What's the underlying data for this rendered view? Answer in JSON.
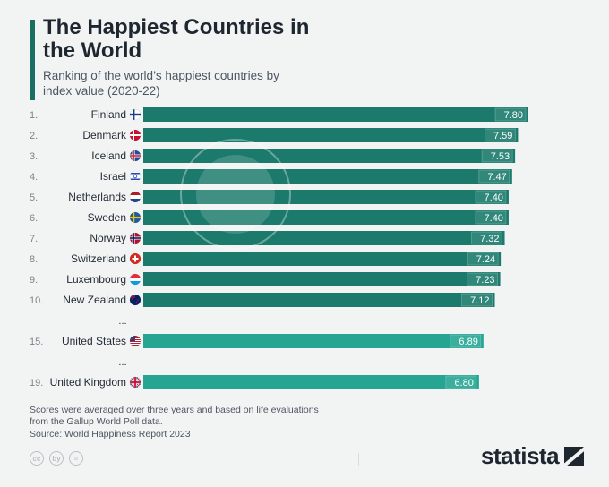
{
  "title": "The Happiest Countries in the World",
  "subtitle": "Ranking of the world’s happiest countries by index value (2020-22)",
  "footnote": "Scores were averaged over three years and based on life evaluations from the Gallup World Poll data.",
  "source": "Source: World Happiness Report 2023",
  "brand": "statista",
  "cc_icons": [
    "cc",
    "by",
    "="
  ],
  "colors": {
    "bar_top10": "#1b7a6c",
    "bar_other": "#25a592",
    "accent": "#1b6e62",
    "label_box": "#3a8f81"
  },
  "chart_data": {
    "type": "bar",
    "orientation": "horizontal",
    "title": "The Happiest Countries in the World",
    "xlabel": "",
    "ylabel": "",
    "xlim": [
      0,
      7.8
    ],
    "rows": [
      {
        "rank": "1.",
        "country": "Finland",
        "flag": "finland",
        "value": 7.8,
        "label": "7.80",
        "group": "top10"
      },
      {
        "rank": "2.",
        "country": "Denmark",
        "flag": "denmark",
        "value": 7.59,
        "label": "7.59",
        "group": "top10"
      },
      {
        "rank": "3.",
        "country": "Iceland",
        "flag": "iceland",
        "value": 7.53,
        "label": "7.53",
        "group": "top10"
      },
      {
        "rank": "4.",
        "country": "Israel",
        "flag": "israel",
        "value": 7.47,
        "label": "7.47",
        "group": "top10"
      },
      {
        "rank": "5.",
        "country": "Netherlands",
        "flag": "netherlands",
        "value": 7.4,
        "label": "7.40",
        "group": "top10"
      },
      {
        "rank": "6.",
        "country": "Sweden",
        "flag": "sweden",
        "value": 7.4,
        "label": "7.40",
        "group": "top10"
      },
      {
        "rank": "7.",
        "country": "Norway",
        "flag": "norway",
        "value": 7.32,
        "label": "7.32",
        "group": "top10"
      },
      {
        "rank": "8.",
        "country": "Switzerland",
        "flag": "switzerland",
        "value": 7.24,
        "label": "7.24",
        "group": "top10"
      },
      {
        "rank": "9.",
        "country": "Luxembourg",
        "flag": "luxembourg",
        "value": 7.23,
        "label": "7.23",
        "group": "top10"
      },
      {
        "rank": "10.",
        "country": "New Zealand",
        "flag": "new-zealand",
        "value": 7.12,
        "label": "7.12",
        "group": "top10"
      },
      {
        "gap": true,
        "label": "..."
      },
      {
        "rank": "15.",
        "country": "United States",
        "flag": "usa",
        "value": 6.89,
        "label": "6.89",
        "group": "other"
      },
      {
        "gap": true,
        "label": "..."
      },
      {
        "rank": "19.",
        "country": "United Kingdom",
        "flag": "uk",
        "value": 6.8,
        "label": "6.80",
        "group": "other"
      }
    ]
  }
}
